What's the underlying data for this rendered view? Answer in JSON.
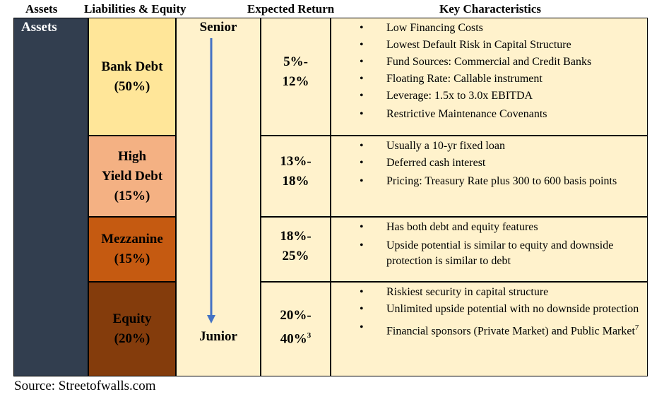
{
  "headers": {
    "assets": "Assets",
    "liabilities_equity": "Liabilities & Equity",
    "expected_return": "Expected Return",
    "key_characteristics": "Key Characteristics"
  },
  "assets_label": "Assets",
  "seniority": {
    "top": "Senior",
    "bottom": "Junior",
    "arrow_color": "#4472c4"
  },
  "tiers": [
    {
      "name_lines": [
        "Bank Debt",
        "(50%)"
      ],
      "color": "#ffe699",
      "return_lines": [
        "5%-",
        "12%"
      ],
      "characteristics": [
        "Low Financing Costs",
        "Lowest Default Risk in Capital Structure",
        "Fund Sources: Commercial and Credit Banks",
        "Floating Rate: Callable instrument",
        "Leverage: 1.5x to 3.0x EBITDA",
        "Restrictive Maintenance Covenants"
      ]
    },
    {
      "name_lines": [
        "High",
        "Yield Debt",
        "(15%)"
      ],
      "color": "#f4b183",
      "return_lines": [
        "13%-",
        "18%"
      ],
      "characteristics": [
        "Usually a 10-yr fixed loan",
        "Deferred cash interest",
        "Pricing: Treasury Rate plus 300 to 600 basis points"
      ]
    },
    {
      "name_lines": [
        "Mezzanine",
        "(15%)"
      ],
      "color": "#c55a11",
      "return_lines": [
        "18%-",
        "25%"
      ],
      "characteristics": [
        "Has both debt and equity features",
        "Upside potential is similar to equity and downside protection is similar to debt"
      ]
    },
    {
      "name_lines": [
        "Equity",
        "(20%)"
      ],
      "color": "#843c0c",
      "return_lines": [
        "20%-",
        "40%"
      ],
      "return_sup": "3",
      "characteristics": [
        "Riskiest security in capital structure",
        "Unlimited upside potential with no downside protection",
        "Financial sponsors (Private Market) and Public Market"
      ],
      "last_sup": "7"
    }
  ],
  "source": "Source: Streetofwalls.com"
}
